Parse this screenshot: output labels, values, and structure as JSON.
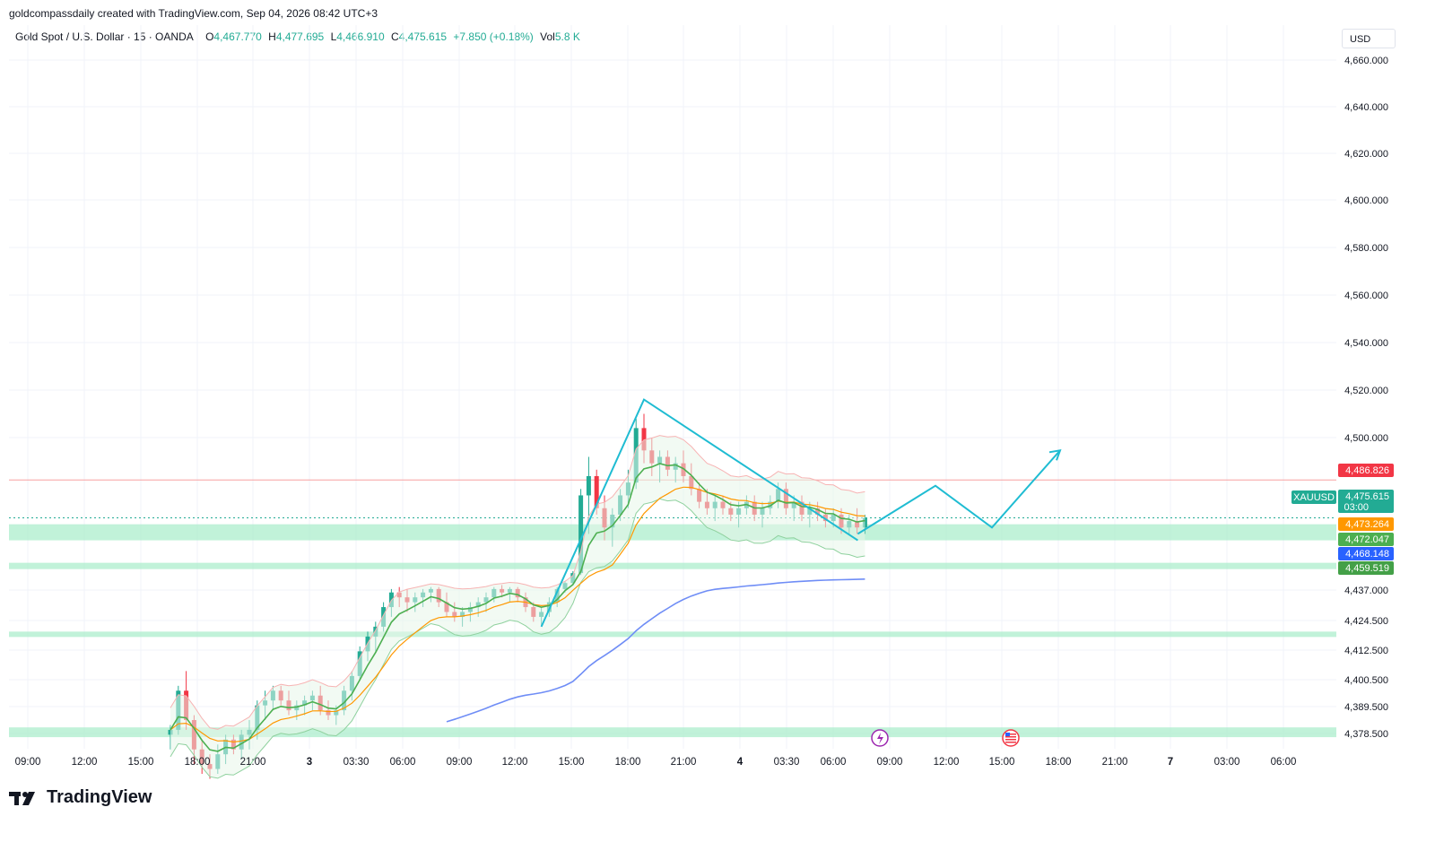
{
  "header": {
    "publisher_line": "goldcompassdaily created with TradingView.com, Sep 04, 2026 08:42 UTC+3"
  },
  "legend": {
    "symbol": "Gold Spot / U.S. Dollar · 15 · OANDA",
    "o_label": "O",
    "o": "4,467.770",
    "h_label": "H",
    "h": "4,477.695",
    "l_label": "L",
    "l": "4,466.910",
    "c_label": "C",
    "c": "4,475.615",
    "change": "+7.850 (+0.18%)",
    "vol_label": "Vol",
    "vol": "5.8 K"
  },
  "currency": "USD",
  "brand": "TradingView",
  "colors": {
    "up": "#22ab94",
    "down": "#f23645",
    "ema_fast": "#4caf50",
    "ema_mid": "#ff9800",
    "ema_slow": "#6f8df6",
    "zone": "#a7ecc9",
    "drawing": "#1fbcd2",
    "resistance": "#f7a0a0"
  },
  "chart_data": {
    "type": "candlestick",
    "symbol": "XAUUSD",
    "interval": "15",
    "y_axis_ticks": [
      "4,660.000",
      "4,640.000",
      "4,620.000",
      "4,600.000",
      "4,580.000",
      "4,560.000",
      "4,540.000",
      "4,520.000",
      "4,500.000",
      "4,437.000",
      "4,424.500",
      "4,412.500",
      "4,400.500",
      "4,389.500",
      "4,378.500"
    ],
    "x_axis_ticks": [
      "09:00",
      "12:00",
      "15:00",
      "18:00",
      "21:00",
      "3",
      "03:30",
      "06:00",
      "09:00",
      "12:00",
      "15:00",
      "18:00",
      "21:00",
      "4",
      "03:30",
      "06:00",
      "09:00",
      "12:00",
      "15:00",
      "18:00",
      "21:00",
      "7",
      "03:00",
      "06:00"
    ],
    "price_tags": [
      {
        "label": "4,486.826",
        "color": "#f23645"
      },
      {
        "label": "4,475.615",
        "sub": "03:00",
        "color": "#22ab94",
        "name": "XAUUSD"
      },
      {
        "label": "4,473.264",
        "color": "#ff9800"
      },
      {
        "label": "4,472.047",
        "color": "#4caf50"
      },
      {
        "label": "4,468.148",
        "color": "#2962ff"
      },
      {
        "label": "4,459.519",
        "color": "#43a047"
      }
    ],
    "candles": [
      [
        4378,
        4382,
        4372,
        4380
      ],
      [
        4380,
        4398,
        4378,
        4396
      ],
      [
        4396,
        4404,
        4380,
        4384
      ],
      [
        4384,
        4386,
        4366,
        4372
      ],
      [
        4372,
        4376,
        4362,
        4366
      ],
      [
        4366,
        4370,
        4360,
        4364
      ],
      [
        4364,
        4374,
        4362,
        4370
      ],
      [
        4370,
        4378,
        4366,
        4376
      ],
      [
        4376,
        4378,
        4370,
        4372
      ],
      [
        4372,
        4380,
        4368,
        4378
      ],
      [
        4378,
        4384,
        4372,
        4380
      ],
      [
        4380,
        4392,
        4376,
        4390
      ],
      [
        4390,
        4396,
        4384,
        4392
      ],
      [
        4392,
        4398,
        4388,
        4396
      ],
      [
        4396,
        4398,
        4390,
        4392
      ],
      [
        4392,
        4396,
        4386,
        4388
      ],
      [
        4388,
        4392,
        4384,
        4390
      ],
      [
        4390,
        4394,
        4386,
        4392
      ],
      [
        4392,
        4396,
        4388,
        4394
      ],
      [
        4394,
        4398,
        4386,
        4388
      ],
      [
        4388,
        4392,
        4384,
        4386
      ],
      [
        4386,
        4390,
        4382,
        4388
      ],
      [
        4388,
        4398,
        4386,
        4396
      ],
      [
        4396,
        4404,
        4392,
        4402
      ],
      [
        4402,
        4414,
        4400,
        4412
      ],
      [
        4412,
        4420,
        4408,
        4418
      ],
      [
        4418,
        4424,
        4412,
        4422
      ],
      [
        4422,
        4432,
        4420,
        4430
      ],
      [
        4430,
        4438,
        4426,
        4436
      ],
      [
        4436,
        4440,
        4430,
        4434
      ],
      [
        4434,
        4438,
        4428,
        4432
      ],
      [
        4432,
        4436,
        4428,
        4434
      ],
      [
        4434,
        4438,
        4430,
        4436
      ],
      [
        4436,
        4440,
        4432,
        4438
      ],
      [
        4438,
        4440,
        4430,
        4432
      ],
      [
        4432,
        4436,
        4426,
        4428
      ],
      [
        4428,
        4432,
        4424,
        4426
      ],
      [
        4426,
        4430,
        4422,
        4428
      ],
      [
        4428,
        4432,
        4424,
        4430
      ],
      [
        4430,
        4434,
        4426,
        4432
      ],
      [
        4432,
        4436,
        4428,
        4434
      ],
      [
        4434,
        4440,
        4432,
        4438
      ],
      [
        4438,
        4442,
        4434,
        4436
      ],
      [
        4436,
        4440,
        4432,
        4438
      ],
      [
        4438,
        4440,
        4432,
        4434
      ],
      [
        4434,
        4436,
        4428,
        4430
      ],
      [
        4430,
        4432,
        4424,
        4426
      ],
      [
        4426,
        4430,
        4422,
        4428
      ],
      [
        4428,
        4434,
        4426,
        4432
      ],
      [
        4432,
        4440,
        4430,
        4438
      ],
      [
        4438,
        4446,
        4436,
        4444
      ],
      [
        4444,
        4456,
        4442,
        4454
      ],
      [
        4454,
        4484,
        4452,
        4482
      ],
      [
        4482,
        4494,
        4470,
        4488
      ],
      [
        4488,
        4490,
        4476,
        4478
      ],
      [
        4478,
        4482,
        4468,
        4472
      ],
      [
        4472,
        4478,
        4466,
        4476
      ],
      [
        4476,
        4484,
        4474,
        4482
      ],
      [
        4482,
        4490,
        4478,
        4486
      ],
      [
        4486,
        4508,
        4484,
        4504
      ],
      [
        4504,
        4510,
        4492,
        4496
      ],
      [
        4496,
        4500,
        4488,
        4492
      ],
      [
        4492,
        4496,
        4486,
        4494
      ],
      [
        4494,
        4496,
        4488,
        4490
      ],
      [
        4490,
        4494,
        4486,
        4492
      ],
      [
        4492,
        4496,
        4486,
        4488
      ],
      [
        4488,
        4492,
        4482,
        4484
      ],
      [
        4484,
        4486,
        4478,
        4480
      ],
      [
        4480,
        4484,
        4476,
        4478
      ],
      [
        4478,
        4482,
        4474,
        4480
      ],
      [
        4480,
        4482,
        4476,
        4478
      ],
      [
        4478,
        4480,
        4474,
        4476
      ],
      [
        4476,
        4480,
        4472,
        4478
      ],
      [
        4478,
        4482,
        4476,
        4480
      ],
      [
        4480,
        4482,
        4474,
        4476
      ],
      [
        4476,
        4480,
        4472,
        4478
      ],
      [
        4478,
        4482,
        4476,
        4480
      ],
      [
        4480,
        4486,
        4478,
        4484
      ],
      [
        4484,
        4486,
        4476,
        4478
      ],
      [
        4478,
        4482,
        4474,
        4480
      ],
      [
        4480,
        4482,
        4474,
        4476
      ],
      [
        4476,
        4480,
        4472,
        4478
      ],
      [
        4478,
        4480,
        4474,
        4476
      ],
      [
        4476,
        4478,
        4472,
        4474
      ],
      [
        4474,
        4478,
        4472,
        4476
      ],
      [
        4476,
        4478,
        4470,
        4472
      ],
      [
        4472,
        4476,
        4470,
        4474
      ],
      [
        4474,
        4478,
        4470,
        4472
      ],
      [
        4472,
        4476,
        4470,
        4475
      ]
    ],
    "support_zones": [
      [
        4473,
        4468
      ],
      [
        4461,
        4458
      ],
      [
        4420,
        4418
      ],
      [
        4381,
        4377
      ]
    ],
    "resistance_line": 4486.8,
    "projection_path_prices": [
      4470,
      4485,
      4472,
      4496
    ]
  }
}
